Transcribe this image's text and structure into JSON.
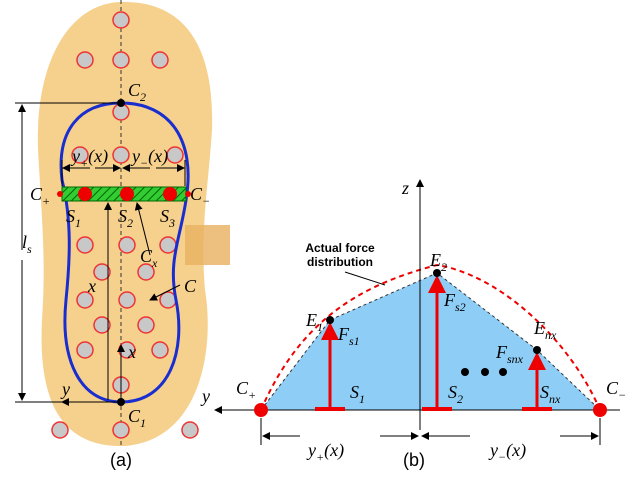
{
  "panel_a": {
    "label": "(a)",
    "c2": {
      "base": "C",
      "sub": "2"
    },
    "y_plus": {
      "base": "y",
      "sub": "+",
      "tail": "(x)"
    },
    "y_minus": {
      "base": "y",
      "sub": "−",
      "tail": "(x)"
    },
    "c_plus": {
      "base": "C",
      "sub": "+"
    },
    "c_minus": {
      "base": "C",
      "sub": "−"
    },
    "s1": {
      "base": "S",
      "sub": "1"
    },
    "s2": {
      "base": "S",
      "sub": "2"
    },
    "s3": {
      "base": "S",
      "sub": "3"
    },
    "cx": {
      "base": "C",
      "sub": "x"
    },
    "ls": {
      "base": "l",
      "sub": "s"
    },
    "contour": {
      "base": "C"
    },
    "x_long": {
      "base": "x"
    },
    "x_short": {
      "base": "x"
    },
    "y_axis": {
      "base": "y"
    },
    "c1": {
      "base": "C",
      "sub": "1"
    }
  },
  "panel_b": {
    "label": "(b)",
    "z": {
      "base": "z"
    },
    "annotation_line1": "Actual force",
    "annotation_line2": "distribution",
    "e2": {
      "base": "E",
      "sub": "2"
    },
    "e1": {
      "base": "E",
      "sub": "1"
    },
    "fs1": {
      "base": "F",
      "sub": "s1"
    },
    "fs2": {
      "base": "F",
      "sub": "s2"
    },
    "enx": {
      "base": "E",
      "sub": "nx"
    },
    "fsnx": {
      "base": "F",
      "sub": "snx"
    },
    "y_axis": {
      "base": "y"
    },
    "c_plus": {
      "base": "C",
      "sub": "+"
    },
    "c_minus": {
      "base": "C",
      "sub": "−"
    },
    "s1": {
      "base": "S",
      "sub": "1"
    },
    "s2": {
      "base": "S",
      "sub": "2"
    },
    "snx": {
      "base": "S",
      "sub": "nx"
    },
    "y_plus": {
      "base": "y",
      "sub": "+",
      "tail": "(x)"
    },
    "y_minus": {
      "base": "y",
      "sub": "−",
      "tail": "(x)"
    }
  }
}
